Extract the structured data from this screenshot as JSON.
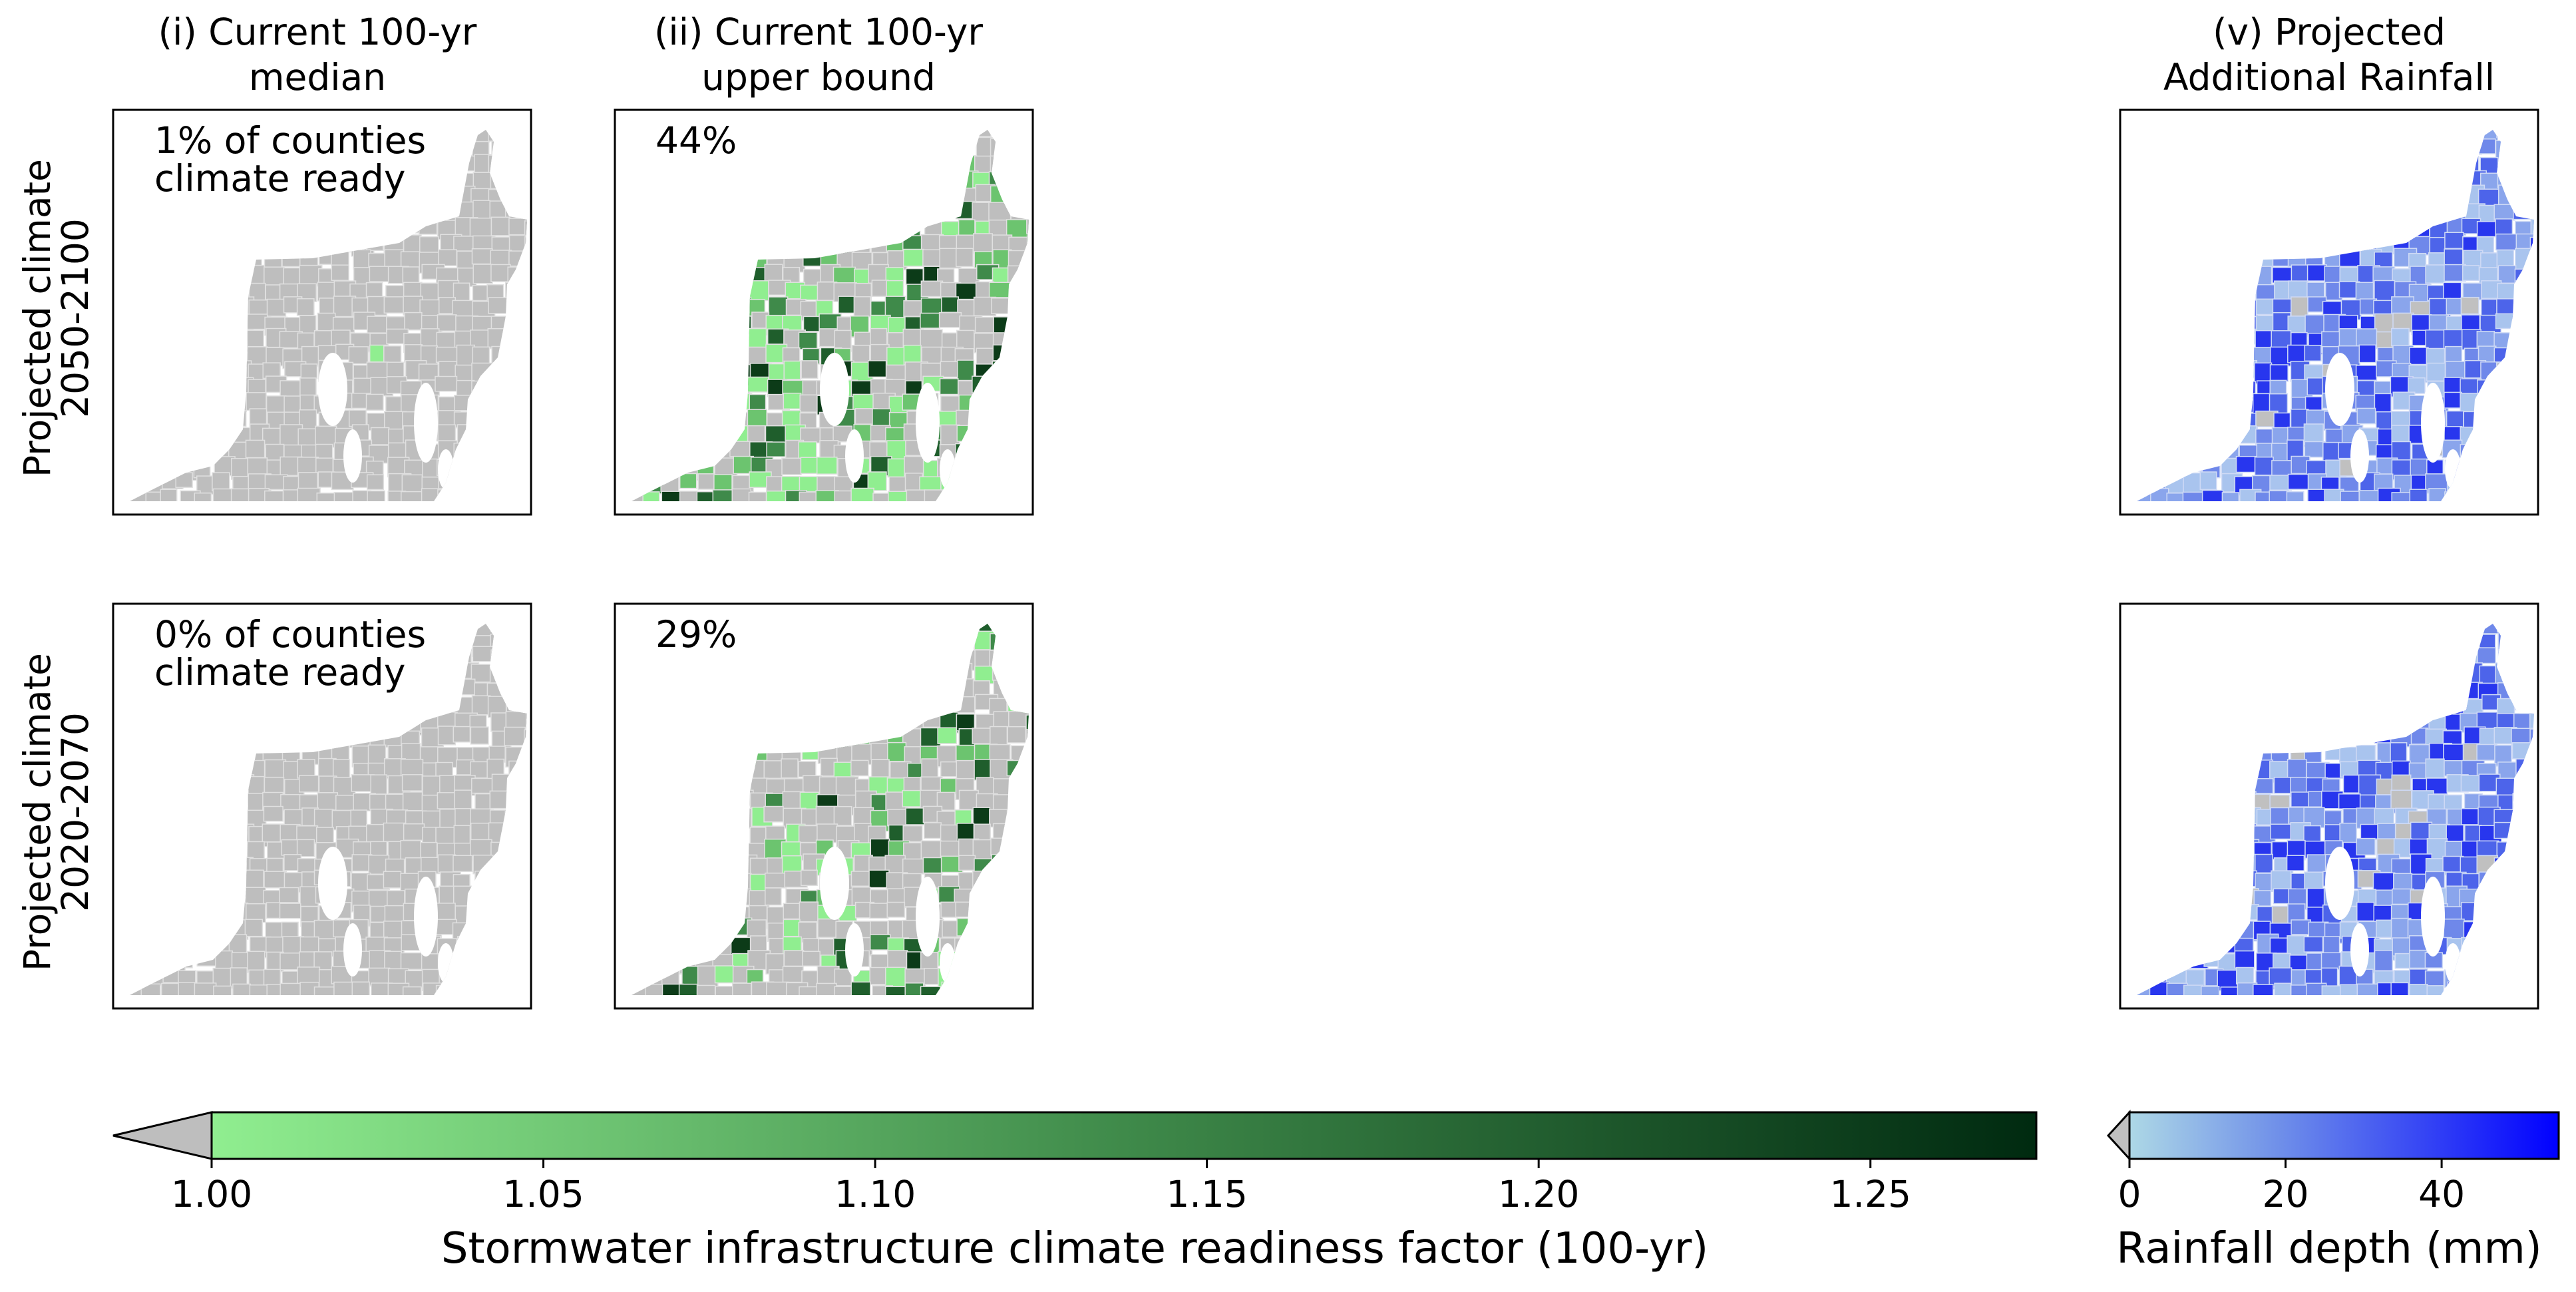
{
  "columns": [
    {
      "title_line1": "(i) Current 100-yr",
      "title_line2": "median"
    },
    {
      "title_line1": "(ii) Current 100-yr",
      "title_line2": "upper bound"
    },
    {
      "title_line1": "(v) Projected",
      "title_line2": "Additional Rainfall"
    }
  ],
  "rows": [
    {
      "label_line1": "Projected climate",
      "label_line2": "2050-2100",
      "median_annotation_line1": "1% of counties",
      "median_annotation_line2": "climate ready",
      "upper_annotation": "44%",
      "median_ready_fraction": 0.01,
      "upper_ready_fraction": 0.44
    },
    {
      "label_line1": "Projected climate",
      "label_line2": "2020-2070",
      "median_annotation_line1": "0% of counties",
      "median_annotation_line2": "climate ready",
      "upper_annotation": "29%",
      "median_ready_fraction": 0.0,
      "upper_ready_fraction": 0.29
    }
  ],
  "colorbars": {
    "readiness": {
      "label": "Stormwater infrastructure climate readiness factor (100-yr)",
      "ticks": [
        "1.00",
        "1.05",
        "1.10",
        "1.15",
        "1.20",
        "1.25"
      ],
      "tick_values": [
        1.0,
        1.05,
        1.1,
        1.15,
        1.2,
        1.25
      ],
      "range": [
        1.0,
        1.275
      ],
      "extend": "min",
      "extend_color": "#bebebe",
      "color_low": "#90ee90",
      "color_high": "#002a10"
    },
    "rainfall": {
      "label": "Rainfall depth (mm)",
      "ticks": [
        "0",
        "20",
        "40"
      ],
      "tick_values": [
        0,
        20,
        40
      ],
      "range": [
        0,
        55
      ],
      "extend": "min",
      "extend_color": "#c0c0c0",
      "color_low": "#add8e6",
      "color_high": "#0000ff"
    }
  },
  "colors": {
    "not_ready": "#bebebe",
    "county_border": "#e0e0e0",
    "frame": "#000000"
  }
}
